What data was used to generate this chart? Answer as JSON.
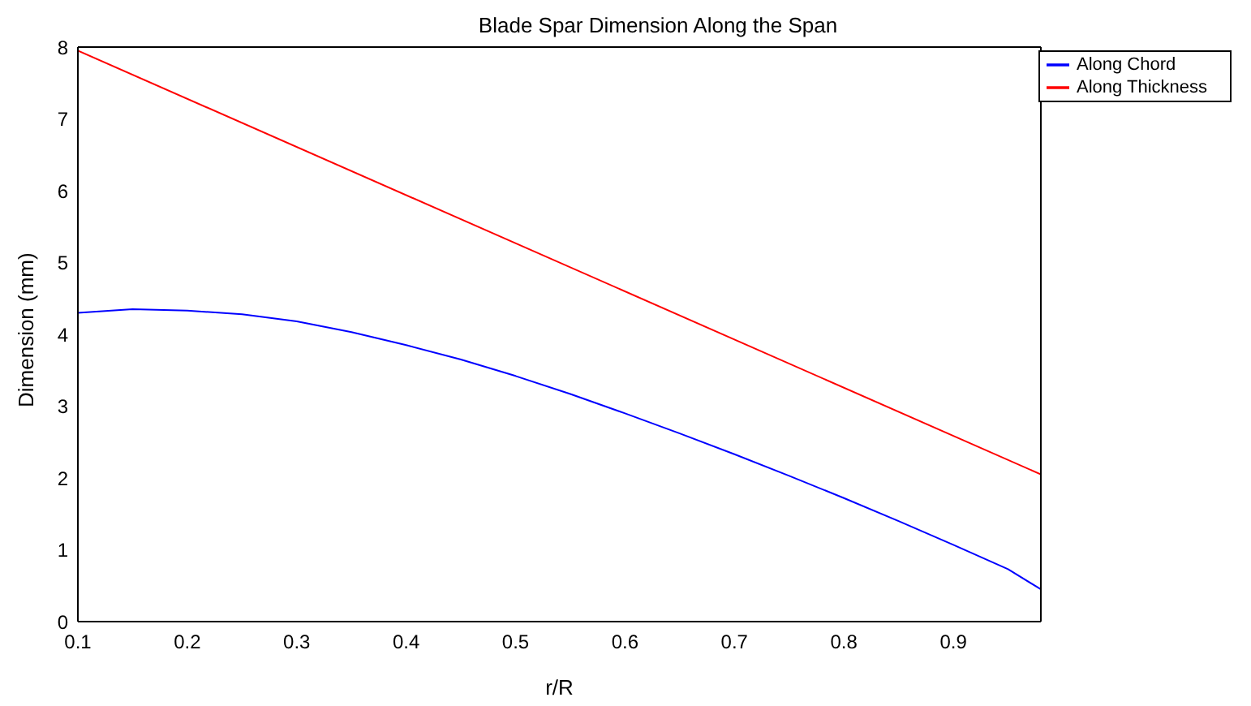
{
  "chart_data": {
    "type": "line",
    "title": "Blade Spar Dimension Along the Span",
    "xlabel": "r/R",
    "ylabel": "Dimension (mm)",
    "xlim": [
      0.1,
      0.98
    ],
    "xticks": [
      0.1,
      0.2,
      0.3,
      0.4,
      0.5,
      0.6,
      0.7,
      0.8,
      0.9
    ],
    "ylim": [
      0,
      8
    ],
    "yticks": [
      0,
      1,
      2,
      3,
      4,
      5,
      6,
      7,
      8
    ],
    "grid": false,
    "legend": "top right",
    "marker": "none",
    "line_style": "solid",
    "series": [
      {
        "name": "Along Chord",
        "color": "#0000ff",
        "x": [
          0.1,
          0.15,
          0.2,
          0.25,
          0.3,
          0.35,
          0.4,
          0.45,
          0.5,
          0.55,
          0.6,
          0.65,
          0.7,
          0.75,
          0.8,
          0.85,
          0.9,
          0.95,
          0.98
        ],
        "values": [
          4.3,
          4.35,
          4.33,
          4.28,
          4.18,
          4.03,
          3.85,
          3.65,
          3.42,
          3.17,
          2.9,
          2.62,
          2.33,
          2.03,
          1.72,
          1.4,
          1.07,
          0.73,
          0.45
        ]
      },
      {
        "name": "Along Thickness",
        "color": "#ff0000",
        "x": [
          0.1,
          0.98
        ],
        "values": [
          7.95,
          2.05
        ]
      }
    ]
  }
}
